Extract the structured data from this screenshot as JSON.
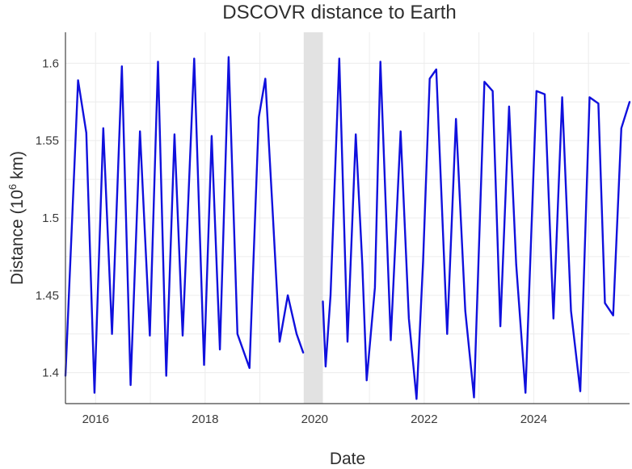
{
  "chart_data": {
    "type": "line",
    "title": "DSCOVR distance to Earth",
    "xlabel": "Date",
    "ylabel_prefix": "Distance (10",
    "ylabel_exp": "6",
    "ylabel_suffix": " km)",
    "xlim": [
      2015.45,
      2025.75
    ],
    "ylim": [
      1.38,
      1.62
    ],
    "x_ticks": [
      {
        "value": 2016,
        "label": "2016"
      },
      {
        "value": 2018,
        "label": "2018"
      },
      {
        "value": 2020,
        "label": "2020"
      },
      {
        "value": 2022,
        "label": "2022"
      },
      {
        "value": 2024,
        "label": "2024"
      }
    ],
    "y_ticks": [
      {
        "value": 1.4,
        "label": "1.4"
      },
      {
        "value": 1.45,
        "label": "1.45"
      },
      {
        "value": 1.5,
        "label": "1.5"
      },
      {
        "value": 1.55,
        "label": "1.55"
      },
      {
        "value": 1.6,
        "label": "1.6"
      }
    ],
    "gap_shading": {
      "x_start": 2019.8,
      "x_end": 2020.15,
      "color": "#e2e2e2"
    },
    "grid": true,
    "series": [
      {
        "color": "#1010dd",
        "segments": [
          {
            "x": [
              2015.45,
              2015.68,
              2015.83,
              2015.98,
              2016.14,
              2016.3,
              2016.48,
              2016.64,
              2016.81,
              2016.99,
              2017.14,
              2017.29,
              2017.44,
              2017.59,
              2017.8,
              2017.98,
              2018.12,
              2018.27,
              2018.43,
              2018.59,
              2018.81,
              2018.98,
              2019.1,
              2019.24,
              2019.36,
              2019.51,
              2019.67,
              2019.79
            ],
            "y": [
              1.398,
              1.589,
              1.555,
              1.387,
              1.558,
              1.425,
              1.598,
              1.392,
              1.556,
              1.424,
              1.601,
              1.398,
              1.554,
              1.424,
              1.603,
              1.405,
              1.553,
              1.415,
              1.604,
              1.425,
              1.403,
              1.565,
              1.59,
              1.5,
              1.42,
              1.45,
              1.425,
              1.413
            ]
          },
          {
            "x": [
              2020.15,
              2020.2,
              2020.29,
              2020.45,
              2020.6,
              2020.75,
              2020.87,
              2020.95,
              2021.1,
              2021.2,
              2021.39,
              2021.57,
              2021.72,
              2021.86,
              2021.98,
              2022.1,
              2022.22,
              2022.42,
              2022.58,
              2022.75,
              2022.91,
              2023.1,
              2023.25,
              2023.39,
              2023.55,
              2023.68,
              2023.85,
              2024.05,
              2024.2,
              2024.36,
              2024.52,
              2024.68,
              2024.85,
              2025.02,
              2025.18,
              2025.3,
              2025.45,
              2025.6,
              2025.75
            ],
            "y": [
              1.446,
              1.404,
              1.45,
              1.603,
              1.42,
              1.554,
              1.47,
              1.395,
              1.455,
              1.601,
              1.421,
              1.556,
              1.435,
              1.383,
              1.472,
              1.59,
              1.596,
              1.425,
              1.564,
              1.44,
              1.384,
              1.588,
              1.582,
              1.43,
              1.572,
              1.47,
              1.387,
              1.582,
              1.58,
              1.435,
              1.578,
              1.44,
              1.388,
              1.578,
              1.574,
              1.445,
              1.437,
              1.558,
              1.575
            ]
          }
        ]
      }
    ]
  }
}
